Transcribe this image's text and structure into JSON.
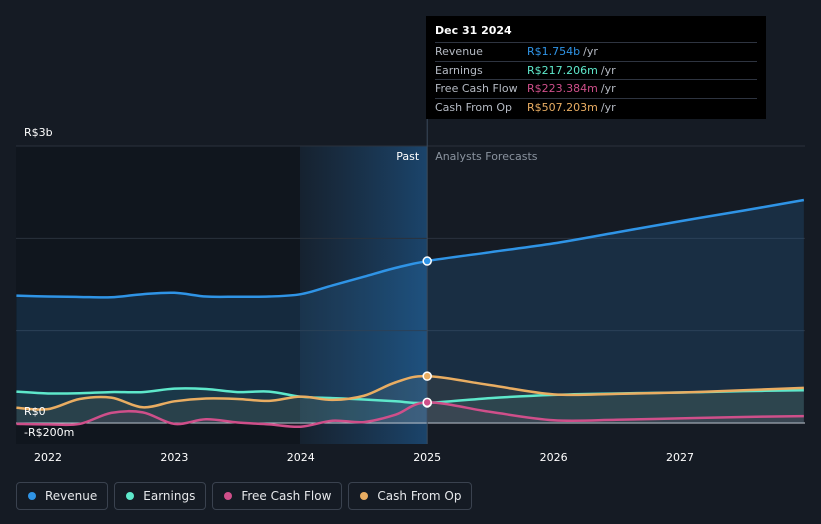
{
  "chart_data": {
    "type": "line",
    "y_axis_labels": {
      "top": "R$3b",
      "zero": "R$0",
      "bottom": "-R$200m"
    },
    "ylim": [
      -200,
      3000
    ],
    "y_unit": "R$ millions",
    "x_ticks": [
      "2022",
      "2023",
      "2024",
      "2025",
      "2026",
      "2027"
    ],
    "x_range": [
      2021.75,
      2027.98
    ],
    "divider_x": 2025.0,
    "past_label": "Past",
    "forecast_label": "Analysts Forecasts",
    "series": [
      {
        "name": "Revenue",
        "color": "#2f94e6",
        "points": [
          [
            2021.75,
            1380
          ],
          [
            2022.0,
            1370
          ],
          [
            2022.25,
            1365
          ],
          [
            2022.5,
            1362
          ],
          [
            2022.75,
            1395
          ],
          [
            2023.0,
            1410
          ],
          [
            2023.25,
            1370
          ],
          [
            2023.5,
            1368
          ],
          [
            2023.75,
            1370
          ],
          [
            2024.0,
            1395
          ],
          [
            2024.25,
            1490
          ],
          [
            2024.5,
            1585
          ],
          [
            2024.75,
            1680
          ],
          [
            2025.0,
            1754
          ],
          [
            2025.5,
            1850
          ],
          [
            2026.0,
            1945
          ],
          [
            2026.5,
            2065
          ],
          [
            2027.0,
            2185
          ],
          [
            2027.5,
            2300
          ],
          [
            2027.98,
            2415
          ]
        ]
      },
      {
        "name": "Earnings",
        "color": "#5ee8cb",
        "points": [
          [
            2021.75,
            340
          ],
          [
            2022.0,
            320
          ],
          [
            2022.25,
            322
          ],
          [
            2022.5,
            335
          ],
          [
            2022.75,
            335
          ],
          [
            2023.0,
            372
          ],
          [
            2023.25,
            368
          ],
          [
            2023.5,
            335
          ],
          [
            2023.75,
            340
          ],
          [
            2024.0,
            285
          ],
          [
            2024.25,
            270
          ],
          [
            2024.5,
            255
          ],
          [
            2024.75,
            235
          ],
          [
            2025.0,
            217.206
          ],
          [
            2025.5,
            270
          ],
          [
            2026.0,
            305
          ],
          [
            2026.5,
            320
          ],
          [
            2027.0,
            330
          ],
          [
            2027.5,
            345
          ],
          [
            2027.98,
            355
          ]
        ]
      },
      {
        "name": "Free Cash Flow",
        "color": "#cf4f8a",
        "points": [
          [
            2021.75,
            -10
          ],
          [
            2022.0,
            -15
          ],
          [
            2022.25,
            -10
          ],
          [
            2022.5,
            110
          ],
          [
            2022.75,
            115
          ],
          [
            2023.0,
            -10
          ],
          [
            2023.25,
            40
          ],
          [
            2023.5,
            5
          ],
          [
            2023.75,
            -15
          ],
          [
            2024.0,
            -40
          ],
          [
            2024.25,
            25
          ],
          [
            2024.5,
            10
          ],
          [
            2024.75,
            90
          ],
          [
            2025.0,
            223.384
          ],
          [
            2025.5,
            120
          ],
          [
            2026.0,
            30
          ],
          [
            2026.5,
            35
          ],
          [
            2027.0,
            50
          ],
          [
            2027.5,
            65
          ],
          [
            2027.98,
            75
          ]
        ]
      },
      {
        "name": "Cash From Op",
        "color": "#e9ad62",
        "points": [
          [
            2021.75,
            165
          ],
          [
            2022.0,
            150
          ],
          [
            2022.25,
            260
          ],
          [
            2022.5,
            275
          ],
          [
            2022.75,
            170
          ],
          [
            2023.0,
            235
          ],
          [
            2023.25,
            265
          ],
          [
            2023.5,
            260
          ],
          [
            2023.75,
            240
          ],
          [
            2024.0,
            285
          ],
          [
            2024.25,
            250
          ],
          [
            2024.5,
            295
          ],
          [
            2024.75,
            440
          ],
          [
            2025.0,
            507.203
          ],
          [
            2025.5,
            410
          ],
          [
            2026.0,
            310
          ],
          [
            2026.5,
            315
          ],
          [
            2027.0,
            330
          ],
          [
            2027.5,
            355
          ],
          [
            2027.98,
            380
          ]
        ]
      }
    ],
    "highlight_x": 2025.0
  },
  "tooltip": {
    "date": "Dec 31 2024",
    "rows": [
      {
        "label": "Revenue",
        "value": "R$1.754b",
        "unit": "/yr",
        "color": "#2f94e6"
      },
      {
        "label": "Earnings",
        "value": "R$217.206m",
        "unit": "/yr",
        "color": "#5ee8cb"
      },
      {
        "label": "Free Cash Flow",
        "value": "R$223.384m",
        "unit": "/yr",
        "color": "#cf4f8a"
      },
      {
        "label": "Cash From Op",
        "value": "R$507.203m",
        "unit": "/yr",
        "color": "#e9ad62"
      }
    ]
  },
  "legend": [
    {
      "label": "Revenue",
      "color": "#2f94e6"
    },
    {
      "label": "Earnings",
      "color": "#5ee8cb"
    },
    {
      "label": "Free Cash Flow",
      "color": "#cf4f8a"
    },
    {
      "label": "Cash From Op",
      "color": "#e9ad62"
    }
  ]
}
